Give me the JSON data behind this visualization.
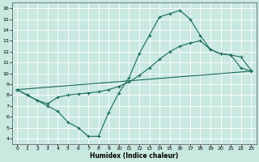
{
  "xlabel": "Humidex (Indice chaleur)",
  "bg_color": "#c8e8e0",
  "grid_color": "#ffffff",
  "line_color": "#1a6b5a",
  "marker": "+",
  "xlim": [
    -0.5,
    23.5
  ],
  "ylim": [
    3.5,
    16.5
  ],
  "xticks": [
    0,
    1,
    2,
    3,
    4,
    5,
    6,
    7,
    8,
    9,
    10,
    11,
    12,
    13,
    14,
    15,
    16,
    17,
    18,
    19,
    20,
    21,
    22,
    23
  ],
  "yticks": [
    4,
    5,
    6,
    7,
    8,
    9,
    10,
    11,
    12,
    13,
    14,
    15,
    16
  ],
  "line1_x": [
    0,
    1,
    2,
    3,
    4,
    5,
    6,
    7,
    8,
    9,
    10,
    11,
    12,
    13,
    14,
    15,
    16,
    17,
    18,
    19,
    20,
    21,
    22,
    23
  ],
  "line1_y": [
    8.5,
    8.0,
    7.5,
    7.0,
    6.5,
    5.5,
    5.0,
    4.2,
    4.2,
    6.4,
    8.2,
    9.6,
    11.8,
    13.5,
    15.2,
    15.5,
    15.8,
    15.0,
    13.5,
    12.2,
    11.8,
    11.7,
    10.5,
    10.2
  ],
  "line2_x": [
    0,
    1,
    2,
    3,
    4,
    5,
    6,
    7,
    8,
    9,
    10,
    11,
    12,
    13,
    14,
    15,
    16,
    17,
    18,
    19,
    20,
    21,
    22,
    23
  ],
  "line2_y": [
    8.5,
    8.0,
    7.5,
    7.2,
    7.8,
    8.0,
    8.1,
    8.2,
    8.3,
    8.5,
    8.8,
    9.2,
    9.8,
    10.5,
    11.3,
    12.0,
    12.5,
    12.8,
    13.0,
    12.2,
    11.8,
    11.7,
    11.5,
    10.3
  ],
  "line3_x": [
    0,
    23
  ],
  "line3_y": [
    8.5,
    10.2
  ]
}
